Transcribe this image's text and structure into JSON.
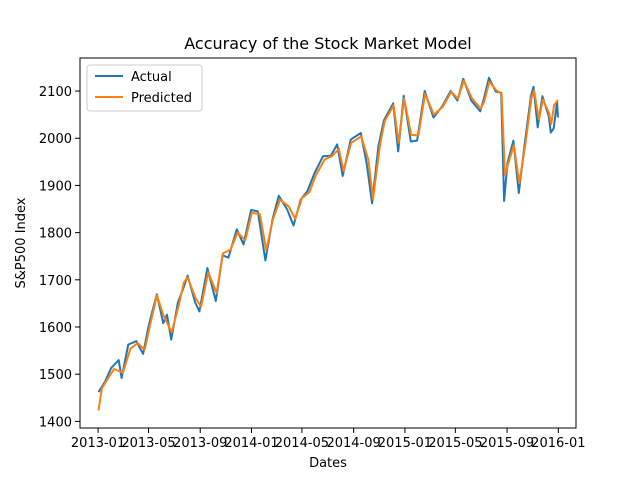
{
  "chart_data": {
    "type": "line",
    "title": "Accuracy of the Stock Market Model",
    "xlabel": "Dates",
    "ylabel": "S&P500 Index",
    "x_ticks": [
      "2013-01",
      "2013-05",
      "2013-09",
      "2014-01",
      "2014-05",
      "2014-09",
      "2015-01",
      "2015-05",
      "2015-09",
      "2016-01"
    ],
    "y_ticks": [
      1400,
      1500,
      1600,
      1700,
      1800,
      1900,
      2000,
      2100
    ],
    "xlim": [
      "2012-11-19",
      "2016-02-12"
    ],
    "ylim": [
      1386,
      2170
    ],
    "legend_position": "upper-left",
    "grid": false,
    "series": [
      {
        "name": "Actual",
        "color": "#1f77b4",
        "points": [
          [
            "2013-01-02",
            1462
          ],
          [
            "2013-01-18",
            1485
          ],
          [
            "2013-02-01",
            1513
          ],
          [
            "2013-02-19",
            1530
          ],
          [
            "2013-02-26",
            1492
          ],
          [
            "2013-03-14",
            1563
          ],
          [
            "2013-04-02",
            1570
          ],
          [
            "2013-04-18",
            1543
          ],
          [
            "2013-04-30",
            1597
          ],
          [
            "2013-05-10",
            1633
          ],
          [
            "2013-05-21",
            1669
          ],
          [
            "2013-06-05",
            1608
          ],
          [
            "2013-06-14",
            1626
          ],
          [
            "2013-06-24",
            1573
          ],
          [
            "2013-07-10",
            1652
          ],
          [
            "2013-07-24",
            1685
          ],
          [
            "2013-08-02",
            1709
          ],
          [
            "2013-08-20",
            1652
          ],
          [
            "2013-08-30",
            1633
          ],
          [
            "2013-09-18",
            1725
          ],
          [
            "2013-10-08",
            1655
          ],
          [
            "2013-10-24",
            1752
          ],
          [
            "2013-11-07",
            1747
          ],
          [
            "2013-11-27",
            1807
          ],
          [
            "2013-12-13",
            1775
          ],
          [
            "2013-12-31",
            1848
          ],
          [
            "2014-01-16",
            1845
          ],
          [
            "2014-02-03",
            1741
          ],
          [
            "2014-02-20",
            1828
          ],
          [
            "2014-03-07",
            1878
          ],
          [
            "2014-03-27",
            1849
          ],
          [
            "2014-04-11",
            1815
          ],
          [
            "2014-04-28",
            1870
          ],
          [
            "2014-05-14",
            1888
          ],
          [
            "2014-05-30",
            1924
          ],
          [
            "2014-06-20",
            1962
          ],
          [
            "2014-07-09",
            1963
          ],
          [
            "2014-07-24",
            1987
          ],
          [
            "2014-08-06",
            1920
          ],
          [
            "2014-08-25",
            1997
          ],
          [
            "2014-09-18",
            2011
          ],
          [
            "2014-10-02",
            1946
          ],
          [
            "2014-10-15",
            1862
          ],
          [
            "2014-10-30",
            1983
          ],
          [
            "2014-11-12",
            2038
          ],
          [
            "2014-12-04",
            2074
          ],
          [
            "2014-12-16",
            1972
          ],
          [
            "2014-12-29",
            2090
          ],
          [
            "2015-01-15",
            1993
          ],
          [
            "2015-01-30",
            1995
          ],
          [
            "2015-02-17",
            2100
          ],
          [
            "2015-03-10",
            2044
          ],
          [
            "2015-03-31",
            2068
          ],
          [
            "2015-04-20",
            2100
          ],
          [
            "2015-05-06",
            2080
          ],
          [
            "2015-05-20",
            2126
          ],
          [
            "2015-06-08",
            2080
          ],
          [
            "2015-06-29",
            2057
          ],
          [
            "2015-07-07",
            2081
          ],
          [
            "2015-07-20",
            2128
          ],
          [
            "2015-08-05",
            2099
          ],
          [
            "2015-08-18",
            2096
          ],
          [
            "2015-08-25",
            1867
          ],
          [
            "2015-09-02",
            1948
          ],
          [
            "2015-09-16",
            1995
          ],
          [
            "2015-09-29",
            1884
          ],
          [
            "2015-10-14",
            1995
          ],
          [
            "2015-10-28",
            2090
          ],
          [
            "2015-11-03",
            2109
          ],
          [
            "2015-11-13",
            2023
          ],
          [
            "2015-11-24",
            2089
          ],
          [
            "2015-12-09",
            2047
          ],
          [
            "2015-12-14",
            2012
          ],
          [
            "2015-12-21",
            2021
          ],
          [
            "2015-12-29",
            2078
          ],
          [
            "2015-12-31",
            2044
          ]
        ]
      },
      {
        "name": "Predicted",
        "color": "#ff7f0e",
        "points": [
          [
            "2013-01-02",
            1423
          ],
          [
            "2013-01-10",
            1470
          ],
          [
            "2013-01-25",
            1492
          ],
          [
            "2013-02-08",
            1511
          ],
          [
            "2013-03-01",
            1503
          ],
          [
            "2013-03-19",
            1554
          ],
          [
            "2013-04-05",
            1566
          ],
          [
            "2013-04-22",
            1552
          ],
          [
            "2013-05-06",
            1609
          ],
          [
            "2013-05-21",
            1667
          ],
          [
            "2013-06-05",
            1626
          ],
          [
            "2013-06-25",
            1589
          ],
          [
            "2013-07-12",
            1646
          ],
          [
            "2013-07-24",
            1694
          ],
          [
            "2013-08-02",
            1705
          ],
          [
            "2013-08-21",
            1661
          ],
          [
            "2013-09-03",
            1643
          ],
          [
            "2013-09-20",
            1716
          ],
          [
            "2013-10-10",
            1672
          ],
          [
            "2013-10-25",
            1756
          ],
          [
            "2013-11-12",
            1764
          ],
          [
            "2013-11-29",
            1800
          ],
          [
            "2013-12-17",
            1784
          ],
          [
            "2014-01-02",
            1842
          ],
          [
            "2014-01-21",
            1839
          ],
          [
            "2014-02-05",
            1763
          ],
          [
            "2014-02-21",
            1828
          ],
          [
            "2014-03-10",
            1870
          ],
          [
            "2014-03-31",
            1855
          ],
          [
            "2014-04-15",
            1829
          ],
          [
            "2014-05-01",
            1873
          ],
          [
            "2014-05-19",
            1886
          ],
          [
            "2014-06-03",
            1921
          ],
          [
            "2014-06-24",
            1955
          ],
          [
            "2014-07-11",
            1962
          ],
          [
            "2014-07-28",
            1977
          ],
          [
            "2014-08-08",
            1931
          ],
          [
            "2014-08-26",
            1990
          ],
          [
            "2014-09-19",
            2004
          ],
          [
            "2014-10-06",
            1954
          ],
          [
            "2014-10-17",
            1871
          ],
          [
            "2014-11-03",
            1987
          ],
          [
            "2014-11-14",
            2036
          ],
          [
            "2014-12-05",
            2070
          ],
          [
            "2014-12-17",
            1990
          ],
          [
            "2014-12-30",
            2084
          ],
          [
            "2015-01-16",
            2007
          ],
          [
            "2015-02-02",
            2006
          ],
          [
            "2015-02-18",
            2094
          ],
          [
            "2015-03-11",
            2050
          ],
          [
            "2015-04-01",
            2067
          ],
          [
            "2015-04-21",
            2098
          ],
          [
            "2015-05-07",
            2084
          ],
          [
            "2015-05-21",
            2122
          ],
          [
            "2015-06-09",
            2085
          ],
          [
            "2015-06-30",
            2063
          ],
          [
            "2015-07-08",
            2076
          ],
          [
            "2015-07-21",
            2120
          ],
          [
            "2015-08-06",
            2102
          ],
          [
            "2015-08-19",
            2094
          ],
          [
            "2015-08-27",
            1921
          ],
          [
            "2015-09-03",
            1944
          ],
          [
            "2015-09-17",
            1985
          ],
          [
            "2015-09-30",
            1905
          ],
          [
            "2015-10-15",
            1990
          ],
          [
            "2015-10-29",
            2085
          ],
          [
            "2015-11-04",
            2101
          ],
          [
            "2015-11-16",
            2040
          ],
          [
            "2015-11-25",
            2082
          ],
          [
            "2015-12-10",
            2053
          ],
          [
            "2015-12-15",
            2030
          ],
          [
            "2015-12-22",
            2070
          ],
          [
            "2015-12-31",
            2081
          ]
        ]
      }
    ]
  }
}
